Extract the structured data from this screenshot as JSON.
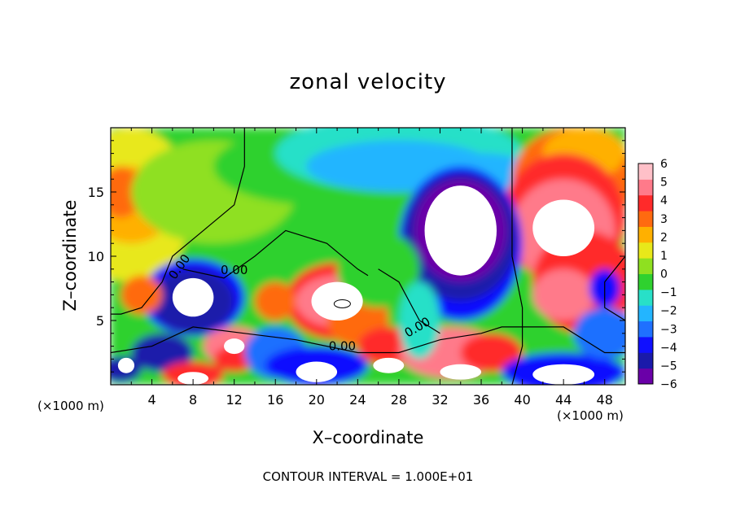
{
  "chart_data": {
    "type": "heatmap",
    "title": "zonal velocity",
    "xlabel": "X–coordinate",
    "ylabel": "Z–coordinate",
    "x_unit": "(×1000 m)",
    "xlim": [
      0,
      50
    ],
    "ylim": [
      0,
      20
    ],
    "x_ticks": [
      4,
      8,
      12,
      16,
      20,
      24,
      28,
      32,
      36,
      40,
      44,
      48
    ],
    "y_ticks": [
      5,
      10,
      15
    ],
    "colorbar": {
      "range": [
        -6,
        6
      ],
      "ticks": [
        6,
        5,
        4,
        3,
        2,
        1,
        0,
        -1,
        -2,
        -3,
        -4,
        -5,
        -6
      ],
      "colors": [
        "#6a00a8",
        "#1a1aaa",
        "#1010ff",
        "#1f70ff",
        "#23b5ff",
        "#28e0c8",
        "#2fd12f",
        "#8fe020",
        "#e8e81a",
        "#ffb000",
        "#ff6a10",
        "#ff2a2a",
        "#ff7a8a",
        "#ffc0c8"
      ]
    },
    "contour_labels": [
      "0.00",
      "0.00",
      "0.00",
      "0.00"
    ],
    "contour_interval": "CONTOUR INTERVAL = 1.000E+01"
  }
}
